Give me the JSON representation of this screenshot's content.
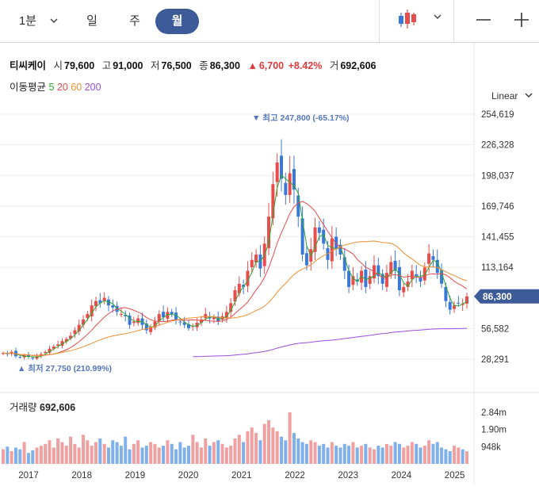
{
  "toolbar": {
    "interval_label": "1분",
    "tabs": [
      "일",
      "주",
      "월"
    ],
    "active_tab": "월",
    "chart_type_icon": "candlestick-icon",
    "zoom_out_icon": "minus-icon",
    "zoom_in_icon": "plus-icon"
  },
  "stock": {
    "name": "티씨케이",
    "open_label": "시",
    "open": "79,600",
    "high_label": "고",
    "high": "91,000",
    "low_label": "저",
    "low": "76,500",
    "close_label": "종",
    "close": "86,300",
    "change": "6,700",
    "change_pct": "+8.42%",
    "volume_label": "거",
    "volume": "692,606"
  },
  "moving_average": {
    "label": "이동평균",
    "periods": [
      {
        "label": "5",
        "color": "#2ea82e"
      },
      {
        "label": "20",
        "color": "#e84c4c"
      },
      {
        "label": "60",
        "color": "#f09030"
      },
      {
        "label": "200",
        "color": "#9b4ee0"
      }
    ]
  },
  "scale_mode": "Linear",
  "colors": {
    "up": "#e84c4c",
    "down": "#3a78d8",
    "vol_up": "#f0a0a0",
    "vol_down": "#7fb0ea",
    "current": "#3d5a99"
  },
  "chart_data": {
    "type": "candlestick",
    "x_ticks": [
      "2017",
      "2018",
      "2019",
      "2020",
      "2021",
      "2022",
      "2023",
      "2024",
      "2025"
    ],
    "y_ticks": [
      "254,619",
      "226,328",
      "198,037",
      "169,746",
      "141,455",
      "113,164",
      "86,300",
      "56,582",
      "28,291"
    ],
    "ylim": [
      28291,
      254619
    ],
    "current_price": "86,300",
    "high_marker": "최고 247,800 (-65.17%)",
    "low_marker": "최저 27,750 (210.99%)",
    "candles_close": [
      34000,
      33000,
      35000,
      31000,
      30000,
      32000,
      30500,
      29000,
      31000,
      33000,
      35000,
      38000,
      40000,
      42000,
      45000,
      47000,
      50000,
      55000,
      60000,
      65000,
      70000,
      78000,
      82000,
      80000,
      85000,
      78000,
      76000,
      72000,
      70000,
      68000,
      60000,
      63000,
      66000,
      60000,
      55000,
      58000,
      63000,
      70000,
      67000,
      72000,
      70000,
      65000,
      63000,
      60000,
      57000,
      59000,
      62000,
      65000,
      70000,
      66000,
      67000,
      63000,
      68000,
      72000,
      80000,
      92000,
      98000,
      95000,
      110000,
      120000,
      125000,
      112000,
      135000,
      160000,
      190000,
      210000,
      195000,
      180000,
      200000,
      185000,
      160000,
      125000,
      115000,
      130000,
      150000,
      145000,
      135000,
      120000,
      140000,
      130000,
      125000,
      110000,
      95000,
      105000,
      100000,
      110000,
      95000,
      105000,
      115000,
      105000,
      98000,
      108000,
      118000,
      110000,
      92000,
      95000,
      100000,
      110000,
      105000,
      100000,
      113000,
      126000,
      120000,
      108000,
      98000,
      82000,
      74000,
      78000,
      80000,
      79600,
      86300
    ],
    "volume_levels_k": [
      800,
      950,
      700,
      900,
      800,
      1200,
      600,
      750,
      900,
      1000,
      1100,
      1300,
      900,
      1400,
      1200,
      1000,
      1500,
      1100,
      900,
      1600,
      1300,
      1000,
      1200,
      1400,
      1100,
      900,
      1300,
      1200,
      1000,
      1500,
      800,
      1100,
      1300,
      900,
      1000,
      1200,
      1100,
      900,
      1000,
      1300,
      1100,
      800,
      1200,
      900,
      1000,
      1600,
      1200,
      900,
      1400,
      1000,
      1200,
      1300,
      1100,
      900,
      1000,
      1400,
      1600,
      1200,
      1800,
      2000,
      1700,
      1300,
      2200,
      2400,
      2000,
      1800,
      1500,
      1300,
      2840,
      1700,
      1400,
      1200,
      1100,
      1300,
      1200,
      1000,
      1100,
      900,
      1200,
      1000,
      900,
      1100,
      1000,
      1200,
      900,
      1000,
      1100,
      900,
      800,
      1000,
      900,
      1100,
      1000,
      1200,
      1100,
      900,
      1000,
      1200,
      1100,
      900,
      1000,
      1300,
      1100,
      1200,
      900,
      800,
      700,
      1000,
      900,
      800,
      692
    ]
  },
  "volume": {
    "label": "거래량",
    "value": "692,606",
    "y_ticks": [
      "2.84m",
      "1.90m",
      "948k"
    ]
  }
}
